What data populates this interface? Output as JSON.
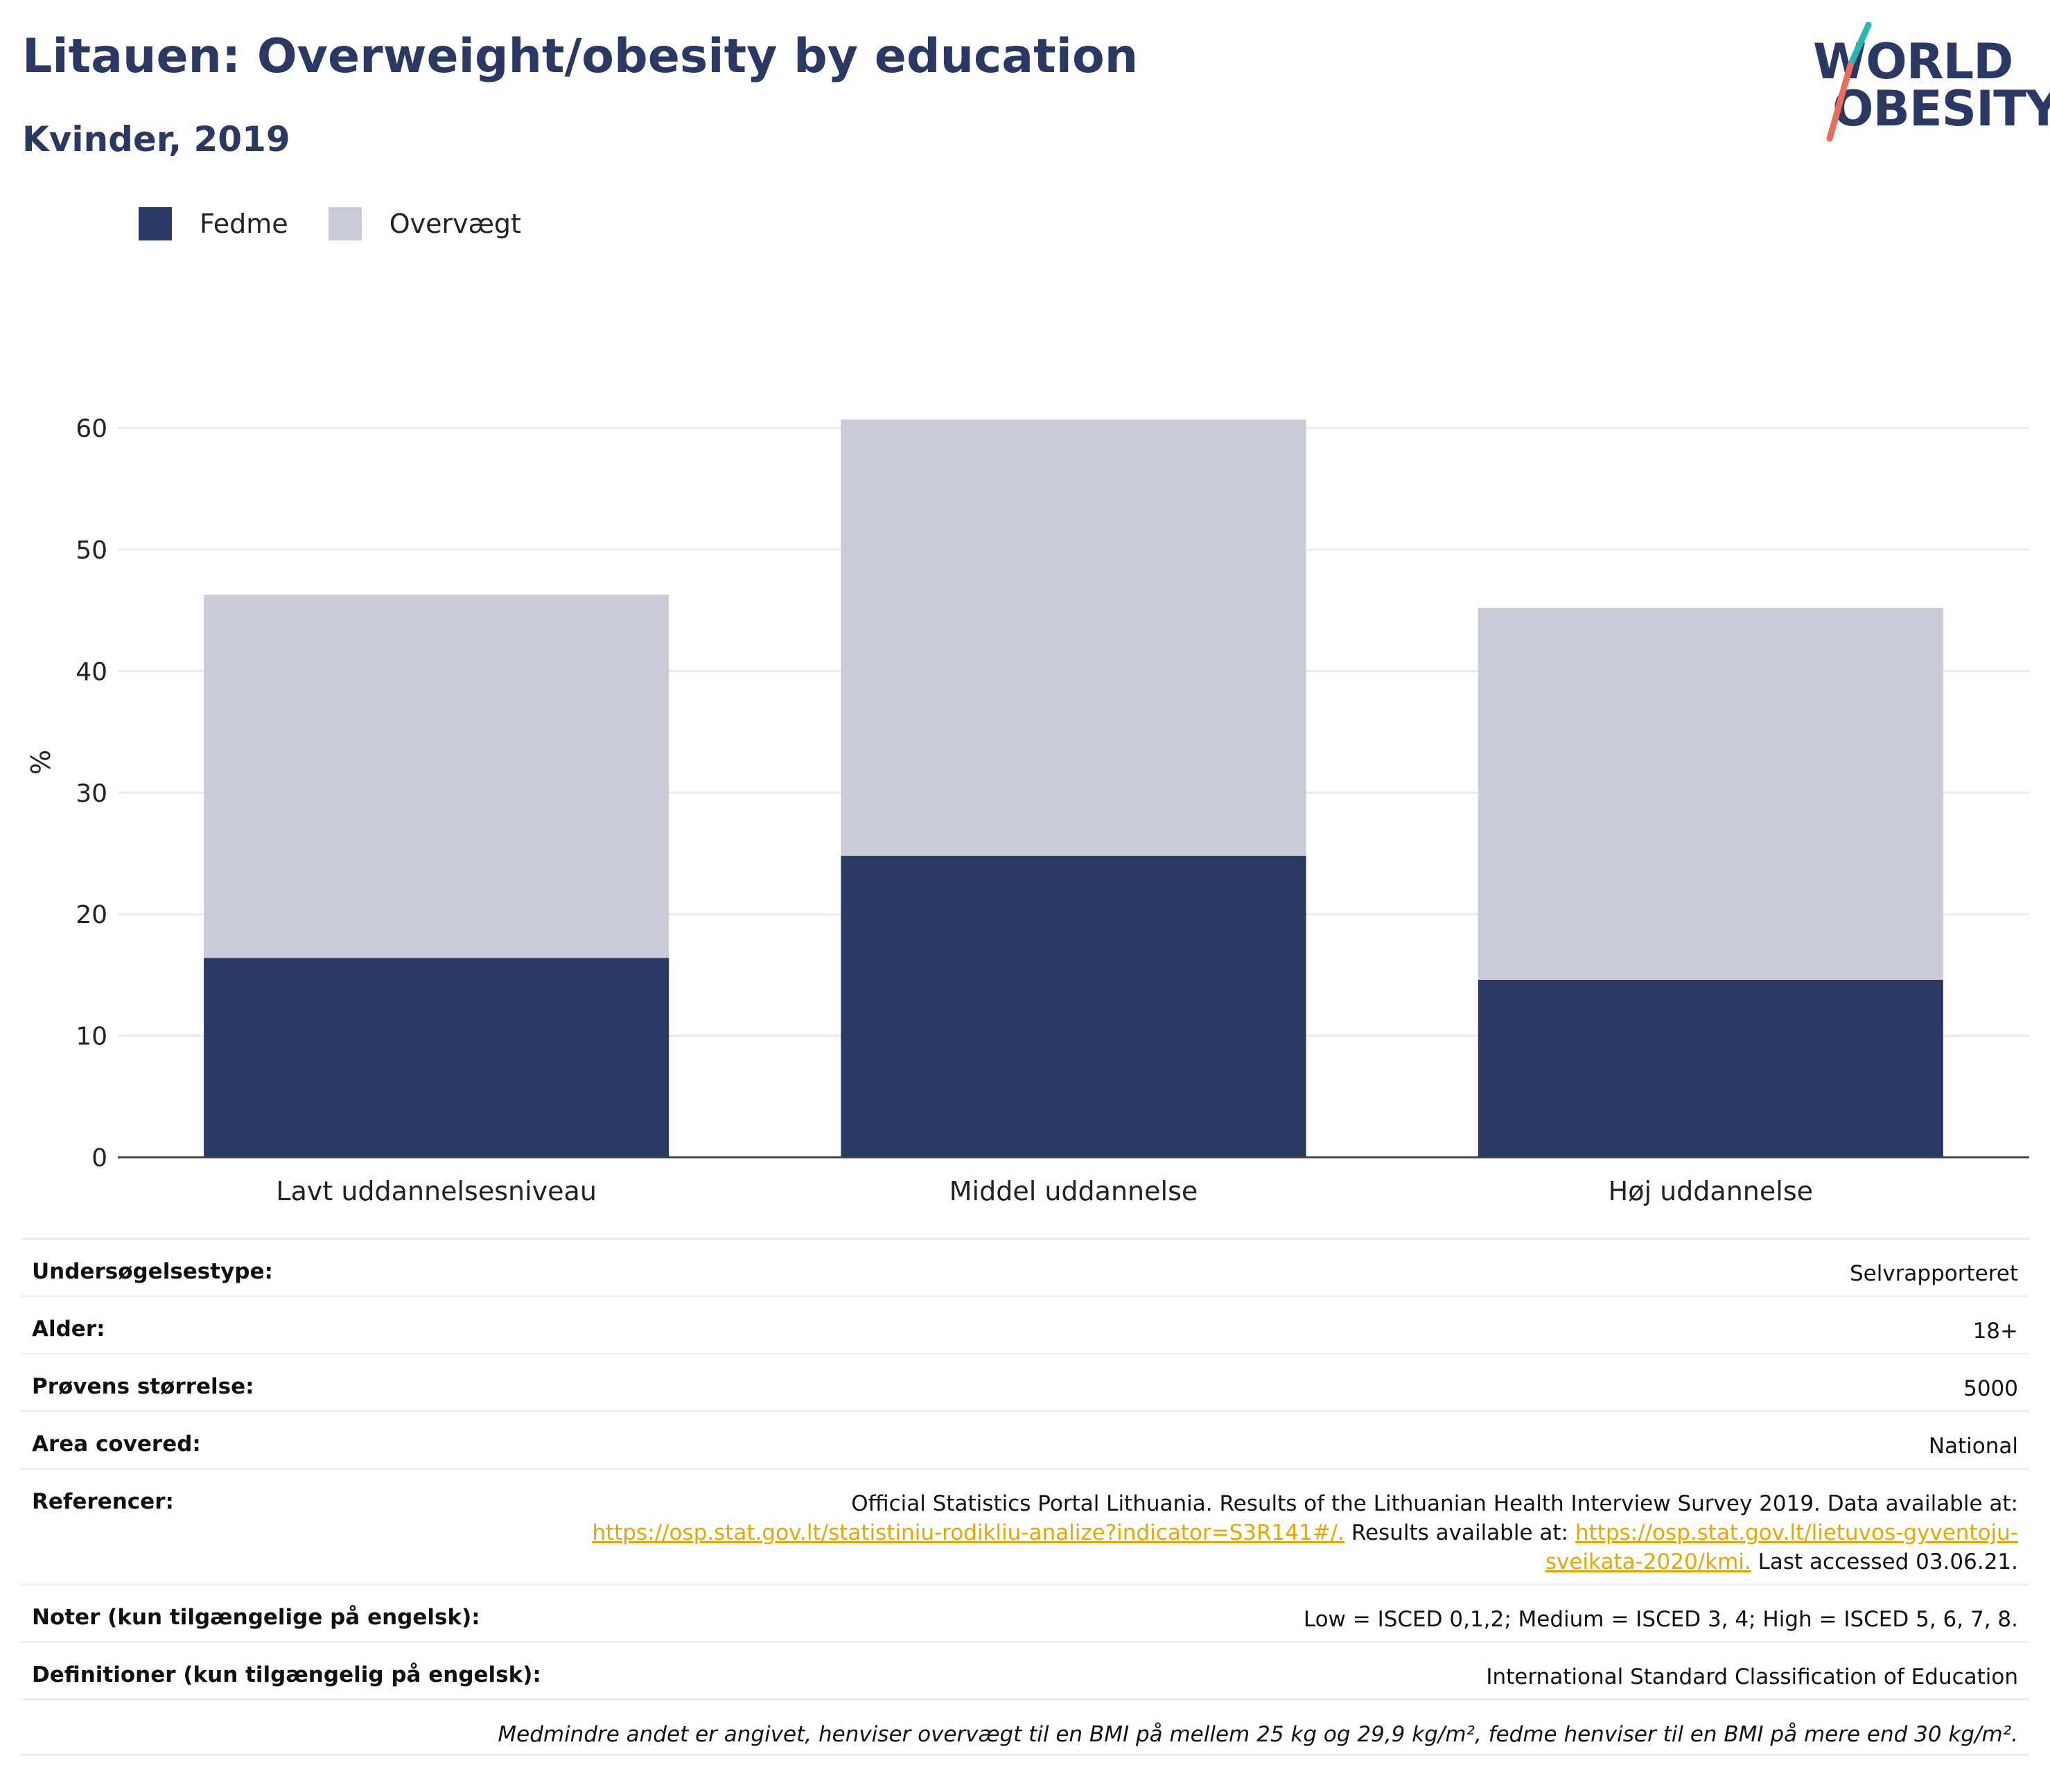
{
  "header": {
    "title": "Litauen: Overweight/obesity by education",
    "subtitle": "Kvinder, 2019"
  },
  "logo": {
    "line1": "WORLD",
    "line2": "OBESITY"
  },
  "colors": {
    "fedme": "#2a3864",
    "overvaegt": "#c9cbd6",
    "accent_teal": "#2bb5b0",
    "accent_coral": "#e8705a",
    "link": "#e8a700"
  },
  "legend": [
    {
      "label": "Fedme"
    },
    {
      "label": "Overvægt"
    }
  ],
  "chart_data": {
    "type": "bar",
    "stacked": true,
    "categories": [
      "Lavt uddannelsesniveau",
      "Middel uddannelse",
      "Høj uddannelse"
    ],
    "series": [
      {
        "name": "Fedme",
        "values": [
          16.4,
          24.8,
          14.6
        ]
      },
      {
        "name": "Overvægt",
        "values": [
          29.9,
          35.9,
          30.6
        ]
      }
    ],
    "ylabel": "%",
    "ylim": [
      0,
      65
    ],
    "yticks": [
      0,
      10,
      20,
      30,
      40,
      50,
      60
    ],
    "grid": true,
    "legend_position": "top-left"
  },
  "info": {
    "survey_type": {
      "label": "Undersøgelsestype:",
      "value": "Selvrapporteret"
    },
    "age": {
      "label": "Alder:",
      "value": "18+"
    },
    "sample_size": {
      "label": "Prøvens størrelse:",
      "value": "5000"
    },
    "area": {
      "label": "Area covered:",
      "value": "National"
    },
    "references": {
      "label": "Referencer:",
      "text1": "Official Statistics Portal Lithuania. Results of the Lithuanian Health Interview Survey 2019. Data available at:",
      "link1": "https://osp.stat.gov.lt/statistiniu-rodikliu-analize?indicator=S3R141#/.",
      "text2": "Results available at:",
      "link2a": "https://osp.stat.gov.lt/lietuvos-gyventoju-",
      "link2b": "sveikata-2020/kmi.",
      "text3": "Last accessed 03.06.21."
    },
    "notes": {
      "label": "Noter (kun tilgængelige på engelsk):",
      "value": "Low = ISCED 0,1,2; Medium = ISCED 3, 4; High = ISCED 5, 6, 7, 8."
    },
    "definitions": {
      "label": "Definitioner (kun tilgængelig på engelsk):",
      "value": "International Standard Classification of Education"
    },
    "footnote": "Medmindre andet er angivet, henviser overvægt til en BMI på mellem 25 kg og 29,9 kg/m², fedme henviser til en BMI på mere end 30 kg/m²."
  }
}
